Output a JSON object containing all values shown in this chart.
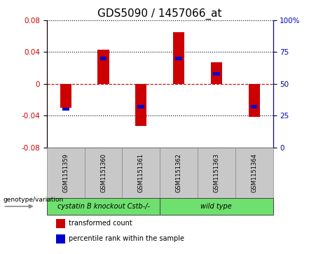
{
  "title": "GDS5090 / 1457066_at",
  "samples": [
    "GSM1151359",
    "GSM1151360",
    "GSM1151361",
    "GSM1151362",
    "GSM1151363",
    "GSM1151364"
  ],
  "red_values": [
    -0.03,
    0.043,
    -0.053,
    0.065,
    0.027,
    -0.042
  ],
  "blue_values_pct": [
    30,
    70,
    32,
    70,
    58,
    32
  ],
  "ylim_left": [
    -0.08,
    0.08
  ],
  "ylim_right": [
    0,
    100
  ],
  "yticks_left": [
    -0.08,
    -0.04,
    0,
    0.04,
    0.08
  ],
  "yticks_right": [
    0,
    25,
    50,
    75,
    100
  ],
  "group1_label": "cystatin B knockout Cstb-/-",
  "group2_label": "wild type",
  "group_color": "#6EE06E",
  "sample_bg_color": "#c8c8c8",
  "bar_width": 0.3,
  "red_color": "#cc0000",
  "blue_color": "#0000cc",
  "zero_line_color": "#cc0000",
  "ylabel_left_color": "#cc0000",
  "ylabel_right_color": "#0000bb",
  "legend_label_red": "transformed count",
  "legend_label_blue": "percentile rank within the sample",
  "genotype_label": "genotype/variation",
  "title_fontsize": 11,
  "tick_fontsize": 7.5,
  "sample_fontsize": 6,
  "legend_fontsize": 7,
  "group_fontsize": 7
}
